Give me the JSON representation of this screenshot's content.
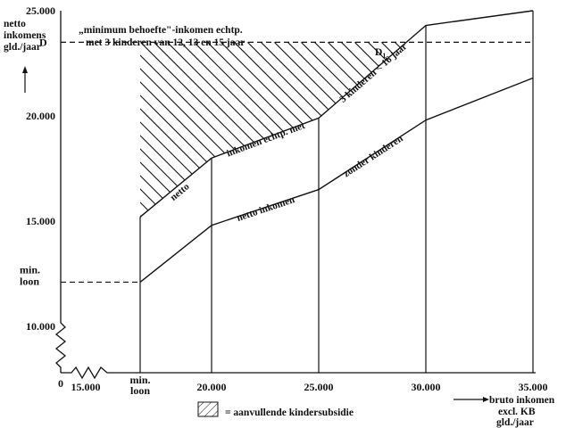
{
  "chart_data": {
    "type": "line",
    "title": "",
    "ylabel_lines": [
      "netto",
      "inkomens",
      "gld./jaar"
    ],
    "xlabel_lines": [
      "bruto inkomen",
      "excl. KB",
      "gld./jaar"
    ],
    "x_ticks": [
      {
        "value": 15000,
        "label": "15.000"
      },
      {
        "value": 20000,
        "label": "20.000"
      },
      {
        "value": 25000,
        "label": "25.000"
      },
      {
        "value": 30000,
        "label": "30.000"
      },
      {
        "value": 35000,
        "label": "35.000"
      }
    ],
    "x_min_loon": {
      "value": 17500,
      "label_lines": [
        "min.",
        "loon"
      ]
    },
    "x_origin_label": "0",
    "y_ticks": [
      {
        "value": 10000,
        "label": "10.000"
      },
      {
        "value": 15000,
        "label": "15.000"
      },
      {
        "value": 20000,
        "label": "20.000"
      },
      {
        "value": 25000,
        "label": "25.000"
      }
    ],
    "y_min_loon": {
      "value": 12100,
      "label_lines": [
        "min.",
        "loon"
      ]
    },
    "y_D": {
      "value": 23500,
      "label": "D"
    },
    "D1_label": "D",
    "D1_subscript": "1",
    "annotation_lines": [
      "„minimum behoefte\"-inkomen echtp.",
      "met 3 kinderen van 12, 13 en 15 jaar"
    ],
    "xlim": [
      15000,
      35000
    ],
    "ylim": [
      8000,
      25000
    ],
    "series": [
      {
        "name": "netto inkomen echtp. met 3 kinderen < 16 jaar",
        "label_parts": [
          "netto",
          "inkomen echtp. met",
          "3 kinderen < 16 jaar"
        ],
        "x": [
          17500,
          20000,
          25000,
          30000,
          35000
        ],
        "y": [
          15200,
          18000,
          19900,
          24300,
          25000
        ]
      },
      {
        "name": "netto inkomen zonder kinderen",
        "label_parts": [
          "netto inkomen",
          "zonder kinderen"
        ],
        "x": [
          17500,
          20000,
          25000,
          30000,
          35000
        ],
        "y": [
          12100,
          14800,
          16500,
          19800,
          21800
        ]
      }
    ],
    "legend": {
      "text": "= aanvullende kindersubsidie",
      "placement": "bottom-center"
    }
  }
}
